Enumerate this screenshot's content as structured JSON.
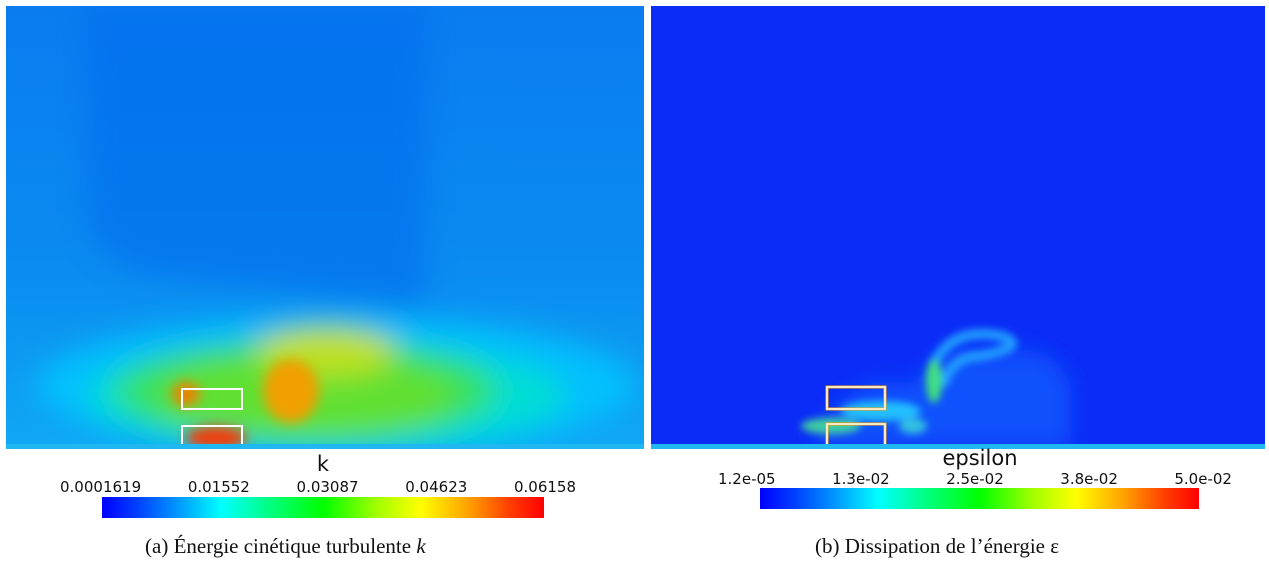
{
  "panels": [
    {
      "legend": {
        "title": "k",
        "ticks": [
          "0.0001619",
          "0.01552",
          "0.03087",
          "0.04623",
          "0.06158"
        ]
      },
      "caption": {
        "label": "(a)",
        "text": "Énergie cinétique turbulente ",
        "symbol": "k"
      }
    },
    {
      "legend": {
        "title": "epsilon",
        "ticks": [
          "1.2e-05",
          "1.3e-02",
          "2.5e-02",
          "3.8e-02",
          "5.0e-02"
        ]
      },
      "caption": {
        "label": "(b)",
        "text": "Dissipation de l’énergie ",
        "symbol": "ε"
      }
    }
  ],
  "colormap": [
    "#0000ff",
    "#00a0ff",
    "#00ffff",
    "#00ff00",
    "#ffff00",
    "#ff8000",
    "#ff0000"
  ]
}
